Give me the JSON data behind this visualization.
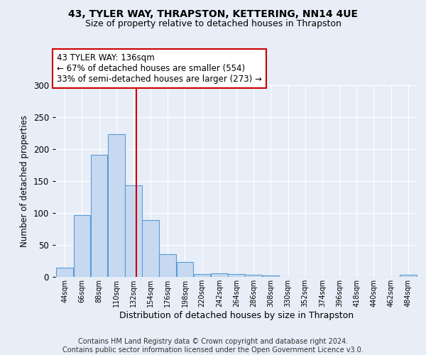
{
  "title1": "43, TYLER WAY, THRAPSTON, KETTERING, NN14 4UE",
  "title2": "Size of property relative to detached houses in Thrapston",
  "xlabel": "Distribution of detached houses by size in Thrapston",
  "ylabel": "Number of detached properties",
  "bin_labels": [
    "44sqm",
    "66sqm",
    "88sqm",
    "110sqm",
    "132sqm",
    "154sqm",
    "176sqm",
    "198sqm",
    "220sqm",
    "242sqm",
    "264sqm",
    "286sqm",
    "308sqm",
    "330sqm",
    "352sqm",
    "374sqm",
    "396sqm",
    "418sqm",
    "440sqm",
    "462sqm",
    "484sqm"
  ],
  "bin_values": [
    15,
    97,
    191,
    223,
    143,
    89,
    36,
    23,
    4,
    6,
    4,
    3,
    2,
    0,
    0,
    0,
    0,
    0,
    0,
    0,
    3
  ],
  "bin_width": 22,
  "bar_color": "#c6d9f0",
  "bar_edge_color": "#5a9bd5",
  "vline_x": 136,
  "vline_color": "#cc0000",
  "annotation_text": "43 TYLER WAY: 136sqm\n← 67% of detached houses are smaller (554)\n33% of semi-detached houses are larger (273) →",
  "annotation_box_color": "white",
  "annotation_box_edge_color": "#cc0000",
  "annotation_fontsize": 8.5,
  "ylim": [
    0,
    300
  ],
  "yticks": [
    0,
    50,
    100,
    150,
    200,
    250,
    300
  ],
  "bg_color": "#e8eef7",
  "footer_text": "Contains HM Land Registry data © Crown copyright and database right 2024.\nContains public sector information licensed under the Open Government Licence v3.0.",
  "footer_fontsize": 7
}
